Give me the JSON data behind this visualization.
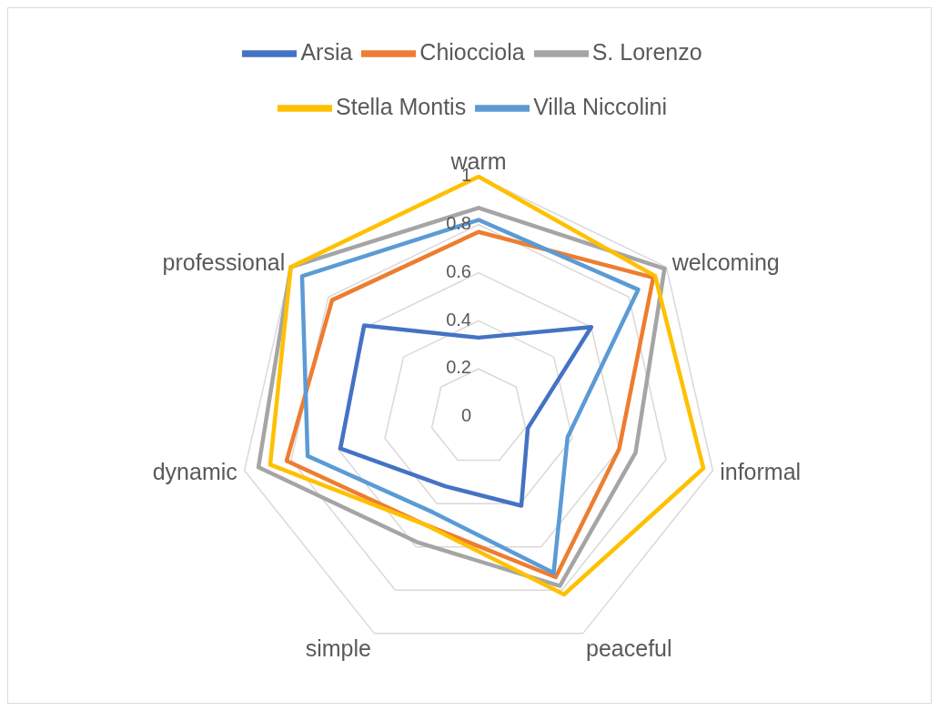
{
  "chart_data": {
    "type": "radar",
    "categories": [
      "warm",
      "welcoming",
      "informal",
      "peaceful",
      "simple",
      "dynamic",
      "professional"
    ],
    "ylim": [
      0,
      1
    ],
    "yticks": [
      0,
      0.2,
      0.4,
      0.6,
      0.8,
      1
    ],
    "grid": true,
    "legend": "top",
    "marker": "none",
    "series": [
      {
        "name": "Arsia",
        "color": "#4472c4",
        "values": [
          0.33,
          0.6,
          0.21,
          0.41,
          0.32,
          0.59,
          0.61
        ]
      },
      {
        "name": "Chiocciola",
        "color": "#ed7d31",
        "values": [
          0.77,
          0.93,
          0.6,
          0.74,
          0.5,
          0.82,
          0.78
        ]
      },
      {
        "name": "S. Lorenzo",
        "color": "#a5a5a5",
        "values": [
          0.87,
          0.99,
          0.67,
          0.78,
          0.58,
          0.94,
          1.0
        ]
      },
      {
        "name": "Stella Montis",
        "color": "#ffc000",
        "values": [
          1.0,
          0.94,
          0.96,
          0.82,
          0.5,
          0.89,
          1.0
        ]
      },
      {
        "name": "Villa Niccolini",
        "color": "#5b9bd5",
        "values": [
          0.82,
          0.85,
          0.38,
          0.72,
          0.44,
          0.73,
          0.94
        ]
      }
    ]
  }
}
